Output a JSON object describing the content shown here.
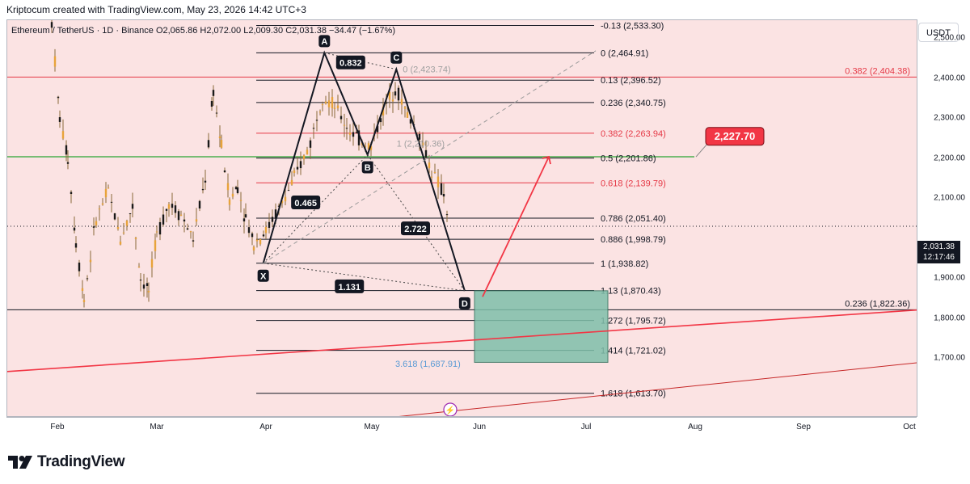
{
  "header": {
    "credit": "Kriptocum created with TradingView.com, May 23, 2026 14:42 UTC+3"
  },
  "legend": {
    "symbol": "Ethereum / TetherUS · 1D · Binance",
    "open": "O2,065.86",
    "high": "H2,072.00",
    "low": "L2,009.30",
    "close": "C2,031.38",
    "change": "−34.47 (−1.67%)"
  },
  "price_axis": {
    "currency": "USDT",
    "ticks": [
      "2,500.00",
      "2,400.00",
      "2,300.00",
      "2,200.00",
      "2,100.00",
      "1,900.00",
      "1,800.00",
      "1,700.00"
    ],
    "last_price": "2,031.38",
    "countdown": "12:17:46"
  },
  "time_axis": {
    "ticks": [
      "Feb",
      "Mar",
      "Apr",
      "May",
      "Jun",
      "Jul",
      "Aug",
      "Sep",
      "Oct"
    ]
  },
  "footer": {
    "brand": "TradingView"
  },
  "colors": {
    "fib_black": "#131722",
    "fib_red": "#e53946",
    "bg_pink": "#fbe3e3",
    "zone_teal": "#7fbfaa",
    "green_line": "#4caf50",
    "target_red": "#f23645",
    "candle": "#6b4a1f"
  },
  "chart_data": {
    "type": "candlestick",
    "symbol": "ETHUSDT",
    "timeframe": "1D",
    "y_range": [
      1620,
      2560
    ],
    "fib_retracement": [
      {
        "label": "-0.13 (2,533.30)",
        "level": 2533.3,
        "color": "black"
      },
      {
        "label": "0 (2,464.91)",
        "level": 2464.91,
        "color": "black"
      },
      {
        "label": "0.13 (2,396.52)",
        "level": 2396.52,
        "color": "black"
      },
      {
        "label": "0.236 (2,340.75)",
        "level": 2340.75,
        "color": "black"
      },
      {
        "label": "0.382 (2,263.94)",
        "level": 2263.94,
        "color": "red"
      },
      {
        "label": "0.5 (2,201.86)",
        "level": 2201.86,
        "color": "black"
      },
      {
        "label": "0.618 (2,139.79)",
        "level": 2139.79,
        "color": "red"
      },
      {
        "label": "0.786 (2,051.40)",
        "level": 2051.4,
        "color": "black"
      },
      {
        "label": "0.886 (1,998.79)",
        "level": 1998.79,
        "color": "black"
      },
      {
        "label": "1 (1,938.82)",
        "level": 1938.82,
        "color": "black"
      },
      {
        "label": "1.13 (1,870.43)",
        "level": 1870.43,
        "color": "black"
      },
      {
        "label": "1.272 (1,795.72)",
        "level": 1795.72,
        "color": "black"
      },
      {
        "label": "1.414 (1,721.02)",
        "level": 1721.02,
        "color": "black"
      },
      {
        "label": "1.618 (1,613.70)",
        "level": 1613.7,
        "color": "black"
      }
    ],
    "side_levels": [
      {
        "label": "0.382 (2,404.38)",
        "level": 2404.38,
        "color": "red"
      },
      {
        "label": "0.236 (1,822.36)",
        "level": 1822.36,
        "color": "black"
      }
    ],
    "harmonic_pattern": {
      "points": [
        {
          "name": "X",
          "date": "2026-03-30",
          "price": 1938.82
        },
        {
          "name": "A",
          "date": "2026-04-16",
          "price": 2464.91
        },
        {
          "name": "B",
          "date": "2026-04-28",
          "price": 2210
        },
        {
          "name": "C",
          "date": "2026-05-06",
          "price": 2423.74
        },
        {
          "name": "D",
          "date": "2026-05-25",
          "price": 1870
        }
      ],
      "ratios": [
        "0.465",
        "0.832",
        "2.722",
        "1.131"
      ],
      "ghost_labels": [
        "0 (2,423.74)",
        "1 (2,210.36)",
        "3.618 (1,687.91)"
      ]
    },
    "target_label": "2,227.70",
    "target_level": 2227.7,
    "last_price": 2031.38,
    "dates": [
      "Feb",
      "Mar",
      "Apr",
      "May",
      "Jun",
      "Jul",
      "Aug",
      "Sep",
      "Oct"
    ]
  }
}
